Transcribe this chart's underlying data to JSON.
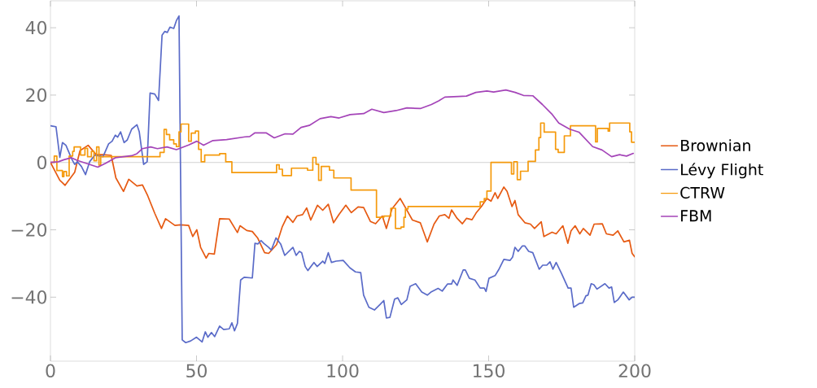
{
  "chart_data": {
    "type": "line",
    "xlim": [
      0,
      200
    ],
    "ylim": [
      -59,
      48
    ],
    "xticks": [
      0,
      50,
      100,
      150,
      200
    ],
    "yticks": [
      {
        "value": -40,
        "label": "−40"
      },
      {
        "value": -20,
        "label": "−20"
      },
      0,
      20,
      40
    ],
    "legend": "right",
    "ref_lines": [
      {
        "axis": "y",
        "value": 0,
        "color": "#c8c8c8"
      }
    ],
    "series": [
      {
        "name": "Brownian",
        "color": "#e65a12",
        "x": [
          0,
          3.2,
          4.1,
          5.0,
          8.3,
          10.1,
          12.9,
          15.7,
          18.0,
          20.8,
          22.4,
          25.0,
          26.8,
          29.6,
          31.5,
          33.3,
          35.7,
          38.0,
          39.4,
          42.6,
          44.5,
          47.3,
          48.7,
          50.1,
          51.4,
          53.3,
          54.2,
          56.1,
          57.9,
          61.2,
          64.0,
          64.9,
          67.2,
          69.1,
          70.9,
          73.3,
          74.7,
          77.4,
          79.3,
          81.1,
          83.0,
          84.4,
          86.3,
          87.7,
          89.1,
          91.4,
          93.2,
          95.1,
          96.9,
          98.8,
          101.1,
          103.0,
          105.3,
          107.2,
          109.5,
          111.3,
          113.6,
          115.0,
          116.9,
          119.7,
          121.5,
          123.9,
          126.6,
          129.0,
          131.3,
          133.1,
          135.0,
          136.4,
          137.3,
          139.2,
          141.0,
          142.4,
          144.3,
          145.7,
          147.5,
          149.4,
          150.8,
          152.2,
          153.1,
          155.2,
          156.3,
          158.0,
          159.0,
          160.1,
          162.4,
          164.3,
          165.7,
          168.0,
          168.9,
          171.7,
          173.1,
          175.4,
          177.1,
          178.2,
          179.6,
          181.2,
          182.4,
          184.7,
          186.1,
          188.9,
          190.3,
          192.6,
          194.2,
          196.3,
          198.2,
          199.1,
          200
        ],
        "values": [
          0,
          -5.3,
          -6,
          -6.8,
          -2.9,
          3.5,
          5.1,
          2.3,
          2.3,
          2.1,
          -4.6,
          -8.6,
          -5,
          -7,
          -6.7,
          -9.9,
          -15.1,
          -19.6,
          -16.7,
          -18.7,
          -18.5,
          -18.7,
          -22,
          -20,
          -25.2,
          -28.4,
          -27,
          -27.2,
          -16.7,
          -16.8,
          -20.8,
          -18.8,
          -20.2,
          -20.5,
          -22.4,
          -26.8,
          -27,
          -24.4,
          -19.2,
          -15.9,
          -17.8,
          -15.9,
          -15.5,
          -13.5,
          -17.1,
          -12.7,
          -14.2,
          -12.4,
          -17.9,
          -15.4,
          -12.7,
          -14.9,
          -13.2,
          -13.4,
          -17.5,
          -18.2,
          -15.9,
          -19.6,
          -13.8,
          -10.7,
          -13.4,
          -17.1,
          -17.9,
          -23.6,
          -18.3,
          -15.9,
          -15.5,
          -16.6,
          -14.1,
          -16.6,
          -18.2,
          -16.6,
          -17,
          -15,
          -13.1,
          -10.7,
          -11.5,
          -9,
          -10.7,
          -7.3,
          -8.6,
          -13.1,
          -11.3,
          -15.5,
          -17.9,
          -18.3,
          -19.6,
          -17.6,
          -22,
          -20.7,
          -21.2,
          -18.8,
          -24,
          -20.3,
          -18.8,
          -21.2,
          -19.6,
          -21.6,
          -18.3,
          -18.2,
          -21.2,
          -21.6,
          -20.3,
          -23.6,
          -23.1,
          -27,
          -28
        ]
      },
      {
        "name": "Lévy Flight",
        "color": "#5a6bc8",
        "x": [
          0,
          1.9,
          3.2,
          4.1,
          5.3,
          7.3,
          8.3,
          9.2,
          10.6,
          12.0,
          13.4,
          15.2,
          18.0,
          19.9,
          21.1,
          22.2,
          23.0,
          24.0,
          25.2,
          26.3,
          27.8,
          29.6,
          30.4,
          31.9,
          33.1,
          34.1,
          35.7,
          37.0,
          38.2,
          39.1,
          40.0,
          40.9,
          42.2,
          43.1,
          44.0,
          45.1,
          46.3,
          48.0,
          50.0,
          51.9,
          53.0,
          53.9,
          55.1,
          56.2,
          57.9,
          59.3,
          61.2,
          62.1,
          63.0,
          64.0,
          65.1,
          66.3,
          69.1,
          70.0,
          71.0,
          72.1,
          73.0,
          74.7,
          75.6,
          77.2,
          78.8,
          80.2,
          83.0,
          84.1,
          85.2,
          86.0,
          87.2,
          88.1,
          90.2,
          91.3,
          93.2,
          93.9,
          95.1,
          96.2,
          97.8,
          100.2,
          102.5,
          104.4,
          106.2,
          107.2,
          109.0,
          110.9,
          112.8,
          114.1,
          115.0,
          116.2,
          117.8,
          118.9,
          120.1,
          122.0,
          123.1,
          125.0,
          127.1,
          129.0,
          130.4,
          132.7,
          134.1,
          135.9,
          137.3,
          137.8,
          139.2,
          141.3,
          142.0,
          143.4,
          145.3,
          147.1,
          148.5,
          149.1,
          150.1,
          152.2,
          153.4,
          155.2,
          157.3,
          158.2,
          159.0,
          160.1,
          161.5,
          162.4,
          163.7,
          165.1,
          167.3,
          168.5,
          169.9,
          171.0,
          172.0,
          173.1,
          174.9,
          177.2,
          178.2,
          179.1,
          181.0,
          182.2,
          183.3,
          184.0,
          185.1,
          186.0,
          187.1,
          189.8,
          191.2,
          192.1,
          193.0,
          194.2,
          196.1,
          198.1,
          199.1,
          200
        ],
        "values": [
          10.9,
          10.6,
          1.5,
          5.9,
          5.1,
          1.0,
          -0.6,
          0.2,
          -1.2,
          -3.6,
          0.2,
          2.2,
          1.7,
          5.5,
          6.3,
          8.1,
          7.5,
          9.1,
          5.9,
          6.7,
          9.9,
          11.2,
          9.1,
          -0.6,
          0.2,
          20.6,
          20.3,
          18.4,
          37.8,
          38.9,
          38.6,
          40.2,
          39.8,
          42.1,
          43.5,
          -52.7,
          -53.5,
          -53,
          -51.9,
          -53.3,
          -50.3,
          -51.9,
          -50.5,
          -51.7,
          -48.6,
          -49.6,
          -49.4,
          -47.6,
          -50,
          -47.8,
          -34.9,
          -34.1,
          -34.3,
          -24,
          -24.2,
          -23.2,
          -24,
          -25.2,
          -26,
          -22.4,
          -24.2,
          -27.6,
          -25.2,
          -27.6,
          -26.4,
          -26.8,
          -30.9,
          -32.1,
          -29.7,
          -30.9,
          -29.3,
          -30,
          -26.8,
          -29.7,
          -29.3,
          -29.1,
          -31.3,
          -32.5,
          -32.7,
          -39.4,
          -43,
          -43.8,
          -42.2,
          -41,
          -46.2,
          -46,
          -40.6,
          -40.2,
          -42.2,
          -40.8,
          -36.8,
          -36,
          -38.5,
          -39.4,
          -38.4,
          -37.4,
          -38.2,
          -36.1,
          -36.1,
          -34.9,
          -36.5,
          -31.9,
          -31.9,
          -34.4,
          -34.9,
          -37.3,
          -37.3,
          -38.3,
          -34.4,
          -33.6,
          -31.9,
          -28.8,
          -29.1,
          -28.1,
          -25.2,
          -26.4,
          -24.8,
          -24.8,
          -26.4,
          -26.8,
          -31.7,
          -30.5,
          -30.5,
          -29.5,
          -31.7,
          -29.7,
          -32.9,
          -37.3,
          -37.3,
          -43,
          -41.9,
          -41.7,
          -39.6,
          -39.4,
          -36,
          -36.3,
          -37.6,
          -36,
          -37.3,
          -37,
          -41.6,
          -40.8,
          -38.5,
          -40.8,
          -40,
          -40
        ]
      },
      {
        "name": "CTRW",
        "type": "step",
        "color": "#f59a0c",
        "x": [
          0,
          1.3,
          2.2,
          4.1,
          4.6,
          5.5,
          6.4,
          7.6,
          8.1,
          10.3,
          11.8,
          12.7,
          14.0,
          14.9,
          15.8,
          16.6,
          17.2,
          37.5,
          38.9,
          39.7,
          40.8,
          42.2,
          43.1,
          44.0,
          44.7,
          47.3,
          48.2,
          49.6,
          50.7,
          51.6,
          52.8,
          57.9,
          60.0,
          62.1,
          77.4,
          78.3,
          79.4,
          82.5,
          88.0,
          89.8,
          90.9,
          91.8,
          92.7,
          95.5,
          97.0,
          102.9,
          111.6,
          114.1,
          116.5,
          118.1,
          120.0,
          121.0,
          121.5,
          122.4,
          147.1,
          148.5,
          149.4,
          150.8,
          157.8,
          158.6,
          159.8,
          160.9,
          163.5,
          166.0,
          167.2,
          167.8,
          169.0,
          172.9,
          173.8,
          175.9,
          178.0,
          186.6,
          187.2,
          190.9,
          191.4,
          198.3,
          198.9,
          199.5,
          200
        ],
        "values": [
          0,
          1.9,
          -2.4,
          -4.2,
          -2.7,
          -4,
          1.9,
          3.3,
          4.6,
          2.2,
          4.2,
          1.7,
          3.3,
          0.5,
          4.6,
          -0.8,
          1.7,
          3.0,
          9.8,
          8.3,
          6.7,
          5.5,
          4.7,
          9.1,
          11.4,
          6.3,
          8.7,
          9.3,
          3.9,
          0.2,
          2.2,
          2.6,
          0.2,
          -3.0,
          -0.7,
          -2.0,
          -3.9,
          -1.7,
          -2.3,
          1.5,
          -0.5,
          -5.3,
          -1.2,
          -2.3,
          -4.6,
          -8.2,
          -16.3,
          -15.9,
          -13.6,
          -19.6,
          -19.2,
          -16.3,
          -13.8,
          -13.1,
          -11.7,
          -10.7,
          -8.5,
          0.0,
          -3.4,
          0.2,
          -5.1,
          -2.6,
          0.3,
          3.7,
          7.4,
          11.7,
          9.0,
          3.9,
          3.0,
          7.9,
          10.9,
          6.1,
          10.1,
          9.3,
          11.7,
          9.1,
          6,
          6,
          6
        ]
      },
      {
        "name": "FBM",
        "color": "#a444b8",
        "x": [
          0,
          2.7,
          4.6,
          7.2,
          9.2,
          12.0,
          16.2,
          19.0,
          22.2,
          27.8,
          29.6,
          31.5,
          34.3,
          36.6,
          39.9,
          43.1,
          47.3,
          50.1,
          52.4,
          55.6,
          60.3,
          66.6,
          68.2,
          70.0,
          73.8,
          76.6,
          80.3,
          83.0,
          85.8,
          88.6,
          92.3,
          96.0,
          98.8,
          102.6,
          107.2,
          110.0,
          114.1,
          118.3,
          122.0,
          126.6,
          130.4,
          132.9,
          135.0,
          139.6,
          142.4,
          145.6,
          149.4,
          151.7,
          155.9,
          159.1,
          161.9,
          165.1,
          168.4,
          171.6,
          174.0,
          177.7,
          180.9,
          185.6,
          188.8,
          192.1,
          194.8,
          197.2,
          199.5
        ],
        "values": [
          0,
          0.2,
          0.8,
          1.4,
          0.6,
          -0.2,
          -1.4,
          -0.2,
          1.4,
          2.0,
          2.6,
          4.1,
          4.6,
          4.1,
          4.6,
          3.8,
          5.2,
          6.3,
          5.1,
          6.5,
          6.8,
          7.6,
          7.7,
          8.8,
          8.8,
          7.3,
          8.5,
          8.4,
          10.4,
          11.0,
          13.0,
          13.6,
          13.2,
          14.2,
          14.5,
          15.8,
          14.8,
          15.4,
          16.2,
          16.0,
          17.2,
          18.3,
          19.4,
          19.6,
          19.7,
          20.8,
          21.2,
          20.9,
          21.5,
          20.8,
          19.9,
          19.8,
          17.2,
          14.4,
          11.7,
          9.9,
          9.0,
          4.7,
          3.7,
          1.7,
          2.3,
          1.9,
          2.7
        ]
      }
    ]
  }
}
